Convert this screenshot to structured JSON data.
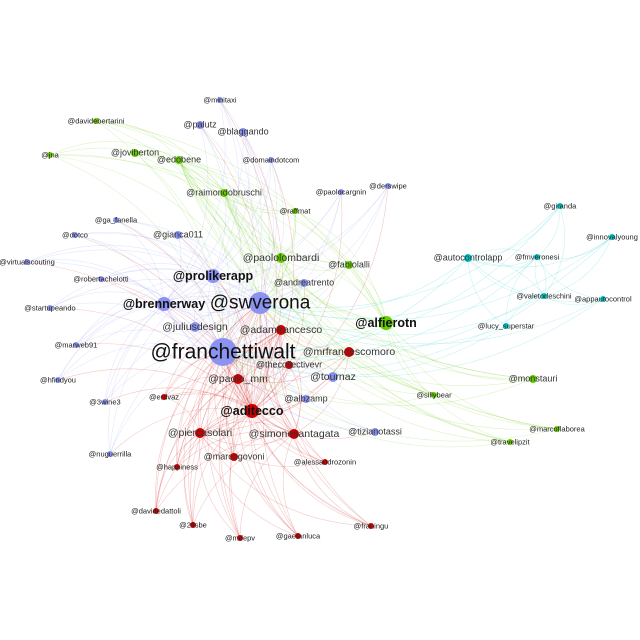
{
  "colors": {
    "blue": "#8b93f2",
    "green": "#66cc00",
    "red": "#cc0000",
    "cyan": "#00c4c8"
  },
  "nodes": [
    {
      "label": "@minitaxi",
      "group": "blue",
      "size": 1
    },
    {
      "label": "@palutz",
      "group": "blue",
      "size": 2
    },
    {
      "label": "@blaggando",
      "group": "blue",
      "size": 2
    },
    {
      "label": "@davidebertarini",
      "group": "green",
      "size": 1
    },
    {
      "label": "@jna",
      "group": "green",
      "size": 1
    },
    {
      "label": "@joviberton",
      "group": "green",
      "size": 2
    },
    {
      "label": "@edobene",
      "group": "green",
      "size": 2
    },
    {
      "label": "@domaindotcom",
      "group": "blue",
      "size": 1
    },
    {
      "label": "@raimondobruschi",
      "group": "green",
      "size": 2
    },
    {
      "label": "@paolocargnin",
      "group": "blue",
      "size": 1
    },
    {
      "label": "@derswipe",
      "group": "blue",
      "size": 1
    },
    {
      "label": "@raffmat",
      "group": "green",
      "size": 1
    },
    {
      "label": "@ga_fanella",
      "group": "blue",
      "size": 1
    },
    {
      "label": "@dotco",
      "group": "blue",
      "size": 1
    },
    {
      "label": "@gianca011",
      "group": "blue",
      "size": 2
    },
    {
      "label": "@virtualscouting",
      "group": "blue",
      "size": 1
    },
    {
      "label": "@paololombardi",
      "group": "green",
      "size": 3
    },
    {
      "label": "@fabiolalli",
      "group": "green",
      "size": 2
    },
    {
      "label": "@autocontrolapp",
      "group": "cyan",
      "size": 2
    },
    {
      "label": "@giranda",
      "group": "cyan",
      "size": 1
    },
    {
      "label": "@innovalyoung",
      "group": "cyan",
      "size": 1
    },
    {
      "label": "@fmveronesi",
      "group": "cyan",
      "size": 1
    },
    {
      "label": "@valetodeschini",
      "group": "cyan",
      "size": 1
    },
    {
      "label": "@appautocontrol",
      "group": "cyan",
      "size": 1
    },
    {
      "label": "@lucy_superstar",
      "group": "cyan",
      "size": 1
    },
    {
      "label": "@robertachelotti",
      "group": "blue",
      "size": 1
    },
    {
      "label": "@prolikerapp",
      "group": "blue",
      "size": 4
    },
    {
      "label": "@andreatrento",
      "group": "blue",
      "size": 2
    },
    {
      "label": "@brennerway",
      "group": "blue",
      "size": 4
    },
    {
      "label": "@swverona",
      "group": "blue",
      "size": 5
    },
    {
      "label": "@alfierotn",
      "group": "green",
      "size": 4
    },
    {
      "label": "@startupeando",
      "group": "blue",
      "size": 1
    },
    {
      "label": "@juliusdesign",
      "group": "blue",
      "size": 3
    },
    {
      "label": "@adamfrancesco",
      "group": "red",
      "size": 3
    },
    {
      "label": "@marweb91",
      "group": "blue",
      "size": 1
    },
    {
      "label": "@franchettiwalt",
      "group": "blue",
      "size": 6
    },
    {
      "label": "@mrfrancescomoro",
      "group": "red",
      "size": 3
    },
    {
      "label": "@thecollectivevr",
      "group": "red",
      "size": 2
    },
    {
      "label": "@paolo_mm",
      "group": "red",
      "size": 3
    },
    {
      "label": "@tournaz",
      "group": "blue",
      "size": 3
    },
    {
      "label": "@hfindyou",
      "group": "blue",
      "size": 1
    },
    {
      "label": "@sillybear",
      "group": "green",
      "size": 1
    },
    {
      "label": "@monstauri",
      "group": "green",
      "size": 2
    },
    {
      "label": "@erdvaz",
      "group": "red",
      "size": 1
    },
    {
      "label": "@3wine3",
      "group": "blue",
      "size": 1
    },
    {
      "label": "@albzamp",
      "group": "blue",
      "size": 2
    },
    {
      "label": "@aditecco",
      "group": "red",
      "size": 4
    },
    {
      "label": "@tizianotassi",
      "group": "blue",
      "size": 2
    },
    {
      "label": "@marcoflaborea",
      "group": "green",
      "size": 1
    },
    {
      "label": "@travelipzit",
      "group": "green",
      "size": 1
    },
    {
      "label": "@piercasolari",
      "group": "red",
      "size": 3
    },
    {
      "label": "@simonesantagata",
      "group": "red",
      "size": 3
    },
    {
      "label": "@marcogovoni",
      "group": "red",
      "size": 2
    },
    {
      "label": "@nuguerrilla",
      "group": "blue",
      "size": 1
    },
    {
      "label": "@happiness",
      "group": "red",
      "size": 1
    },
    {
      "label": "@alessandrozonin",
      "group": "red",
      "size": 1
    },
    {
      "label": "@davidedattoli",
      "group": "red",
      "size": 1
    },
    {
      "label": "@2fisbe",
      "group": "red",
      "size": 1
    },
    {
      "label": "@mdepv",
      "group": "red",
      "size": 1
    },
    {
      "label": "@gaetanluca",
      "group": "red",
      "size": 1
    },
    {
      "label": "@franingu",
      "group": "red",
      "size": 1
    }
  ]
}
